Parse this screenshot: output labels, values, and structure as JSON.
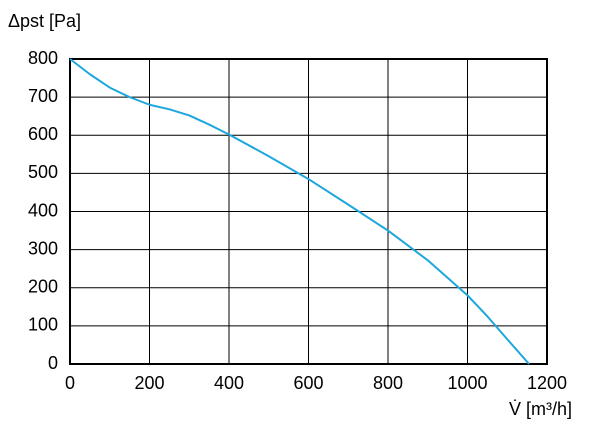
{
  "chart_data": {
    "type": "line",
    "ylabel": "Δpst [Pa]",
    "xlabel": "V̇ [m³/h]",
    "x": [
      0,
      50,
      100,
      150,
      200,
      250,
      300,
      350,
      400,
      500,
      600,
      700,
      800,
      900,
      1000,
      1050,
      1100,
      1155
    ],
    "values": [
      800,
      760,
      725,
      700,
      680,
      668,
      652,
      628,
      602,
      545,
      485,
      418,
      350,
      272,
      180,
      125,
      65,
      0
    ],
    "color": "#1ea7dd",
    "xlim": [
      0,
      1200
    ],
    "xticks": [
      0,
      200,
      400,
      600,
      800,
      1000,
      1200
    ],
    "ylim": [
      0,
      800
    ],
    "yticks": [
      0,
      100,
      200,
      300,
      400,
      500,
      600,
      700,
      800
    ],
    "grid": true
  }
}
